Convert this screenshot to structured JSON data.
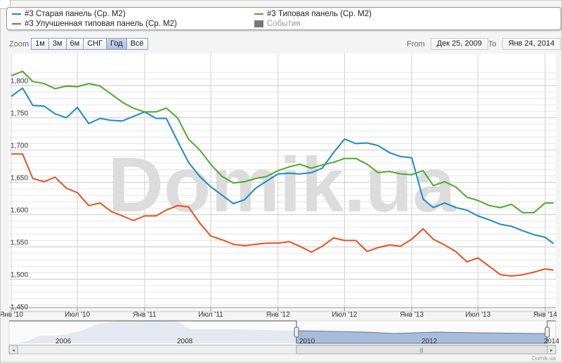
{
  "legend": {
    "items": [
      {
        "label": "#3 Старая панель (Ср. М2)",
        "color": "#1a8bc9"
      },
      {
        "label": "#3 Улучшенная типовая панель (Ср. М2)",
        "color": "#e8501e"
      },
      {
        "label": "#3 Типовая панель (Ср. М2)",
        "color": "#4aab2a"
      },
      {
        "label": "События",
        "color": "#777777",
        "disabled": true
      }
    ]
  },
  "zoom": {
    "label": "Zoom",
    "buttons": [
      "1м",
      "3м",
      "6м",
      "СНГ",
      "Год",
      "Всё"
    ],
    "active": "Год"
  },
  "range": {
    "from_label": "From",
    "from": "Дек 25, 2009",
    "to_label": "To",
    "to": "Янв 24, 2014"
  },
  "credit": "Domik.ua",
  "watermark": "Domik.ua",
  "navigator": {
    "labels": [
      "2006",
      "2008",
      "2010",
      "2012",
      "2014"
    ]
  },
  "chart_data": {
    "type": "line",
    "title": "",
    "xlabel": "",
    "ylabel": "",
    "xlim": [
      "2009-12-25",
      "2014-01-24"
    ],
    "ylim": [
      1450,
      1820
    ],
    "yticks": [
      1450,
      1500,
      1550,
      1600,
      1650,
      1700,
      1750,
      1800
    ],
    "ytick_labels": [
      "1,450",
      "1,500",
      "1,550",
      "1,600",
      "1,650",
      "1,700",
      "1,750",
      "1,800"
    ],
    "xticks": [
      "2010-01-01",
      "2010-07-01",
      "2011-01-01",
      "2011-07-01",
      "2012-01-01",
      "2012-07-01",
      "2013-01-01",
      "2013-07-01",
      "2014-01-01"
    ],
    "xtick_labels": [
      "Янв '10",
      "Июл '10",
      "Янв '11",
      "Июл '11",
      "Янв '12",
      "Июл '12",
      "Янв '13",
      "Июл '13",
      "Янв '14"
    ],
    "grid": true,
    "legend_position": "top",
    "x": [
      "2010-01-01",
      "2010-02-01",
      "2010-03-01",
      "2010-04-01",
      "2010-05-01",
      "2010-06-01",
      "2010-07-01",
      "2010-08-01",
      "2010-09-01",
      "2010-10-01",
      "2010-11-01",
      "2010-12-01",
      "2011-01-01",
      "2011-02-01",
      "2011-03-01",
      "2011-04-01",
      "2011-05-01",
      "2011-06-01",
      "2011-07-01",
      "2011-08-01",
      "2011-09-01",
      "2011-10-01",
      "2011-11-01",
      "2011-12-01",
      "2012-01-01",
      "2012-02-01",
      "2012-03-01",
      "2012-04-01",
      "2012-05-01",
      "2012-06-01",
      "2012-07-01",
      "2012-08-01",
      "2012-09-01",
      "2012-10-01",
      "2012-11-01",
      "2012-12-01",
      "2013-01-01",
      "2013-02-01",
      "2013-03-01",
      "2013-04-01",
      "2013-05-01",
      "2013-06-01",
      "2013-07-01",
      "2013-08-01",
      "2013-09-01",
      "2013-10-01",
      "2013-11-01",
      "2013-12-01",
      "2014-01-01",
      "2014-01-24"
    ],
    "series": [
      {
        "name": "#3 Старая панель (Ср. М2)",
        "color": "#1a8bc9",
        "values": [
          1783,
          1796,
          1769,
          1768,
          1756,
          1750,
          1766,
          1741,
          1749,
          1746,
          1745,
          1752,
          1759,
          1749,
          1749,
          1714,
          1681,
          1659,
          1643,
          1630,
          1617,
          1623,
          1641,
          1652,
          1663,
          1664,
          1663,
          1665,
          1672,
          1696,
          1717,
          1710,
          1711,
          1707,
          1696,
          1690,
          1688,
          1624,
          1611,
          1618,
          1611,
          1607,
          1598,
          1592,
          1585,
          1582,
          1575,
          1569,
          1565,
          1555
        ]
      },
      {
        "name": "#3 Улучшенная типовая панель (Ср. М2)",
        "color": "#e8501e",
        "values": [
          1694,
          1694,
          1656,
          1651,
          1658,
          1641,
          1634,
          1614,
          1618,
          1605,
          1598,
          1591,
          1598,
          1598,
          1607,
          1614,
          1612,
          1587,
          1567,
          1561,
          1554,
          1552,
          1554,
          1556,
          1556,
          1558,
          1551,
          1542,
          1551,
          1564,
          1560,
          1560,
          1543,
          1549,
          1553,
          1551,
          1562,
          1578,
          1562,
          1553,
          1543,
          1527,
          1533,
          1520,
          1507,
          1505,
          1507,
          1511,
          1516,
          1514
        ]
      },
      {
        "name": "#3 Типовая панель (Ср. М2)",
        "color": "#4aab2a",
        "values": [
          1815,
          1822,
          1806,
          1803,
          1795,
          1799,
          1798,
          1803,
          1799,
          1787,
          1774,
          1765,
          1759,
          1759,
          1765,
          1750,
          1717,
          1700,
          1678,
          1659,
          1649,
          1651,
          1656,
          1659,
          1668,
          1674,
          1678,
          1672,
          1677,
          1681,
          1687,
          1687,
          1678,
          1665,
          1667,
          1663,
          1662,
          1668,
          1645,
          1651,
          1643,
          1627,
          1622,
          1614,
          1611,
          1616,
          1603,
          1603,
          1618,
          1618
        ]
      }
    ]
  }
}
